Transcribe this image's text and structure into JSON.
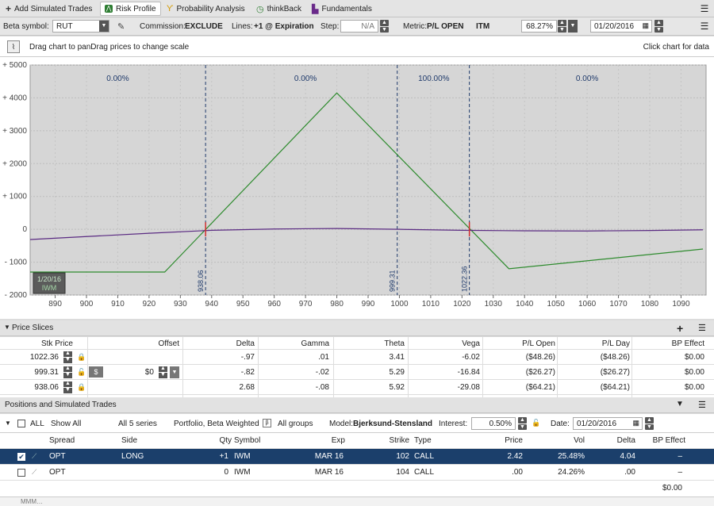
{
  "tabs": [
    {
      "label": "Add Simulated Trades",
      "icon": "plus-icon",
      "active": false
    },
    {
      "label": "Risk Profile",
      "icon": "risk-profile-icon",
      "active": true
    },
    {
      "label": "Probability Analysis",
      "icon": "probability-icon",
      "active": false
    },
    {
      "label": "thinkBack",
      "icon": "thinkback-icon",
      "active": false
    },
    {
      "label": "Fundamentals",
      "icon": "fundamentals-icon",
      "active": false
    }
  ],
  "toolbar": {
    "beta_label": "Beta symbol:",
    "beta_value": "RUT",
    "commission_label": "Commission:",
    "commission_value": "EXCLUDE",
    "lines_label": "Lines:",
    "lines_value": "+1 @ Expiration",
    "step_label": "Step:",
    "step_value": "N/A",
    "metric_label": "Metric:",
    "metric_value": "P/L OPEN",
    "itm_label": "ITM",
    "itm_value": "68.27%",
    "date_value": "01/20/2016"
  },
  "chart_header": {
    "left_text": "Drag chart to panDrag prices to change scale",
    "right_text": "Click chart for data"
  },
  "chart_data": {
    "type": "line",
    "x_ticks": [
      890,
      900,
      910,
      920,
      930,
      940,
      950,
      960,
      970,
      980,
      990,
      1000,
      1010,
      1020,
      1030,
      1040,
      1050,
      1060,
      1070,
      1080,
      1090
    ],
    "y_ticks": [
      "+ 5000",
      "+ 4000",
      "+ 3000",
      "+ 2000",
      "+ 1000",
      "0",
      "- 1000",
      "- 2000"
    ],
    "xlim": [
      882,
      1098
    ],
    "ylim": [
      -2000,
      5000
    ],
    "series": [
      {
        "color": "#2e8b2e",
        "x": [
          882,
          925,
          980,
          1035,
          1097
        ],
        "y": [
          -1300,
          -1300,
          4150,
          -1200,
          -600
        ]
      },
      {
        "color": "#5a2a82",
        "x": [
          882,
          900,
          920,
          940,
          960,
          980,
          1000,
          1020,
          1040,
          1060,
          1080,
          1097
        ],
        "y": [
          -310,
          -220,
          -120,
          -30,
          10,
          25,
          0,
          -30,
          -45,
          -50,
          -35,
          -15
        ]
      }
    ],
    "vertical_markers": [
      {
        "x": 938.06,
        "label": "938.06"
      },
      {
        "x": 999.31,
        "label": "999.31"
      },
      {
        "x": 1022.36,
        "label": "1022.36"
      }
    ],
    "probabilities": [
      {
        "x": 910,
        "label": "0.00%"
      },
      {
        "x": 970,
        "label": "0.00%"
      },
      {
        "x": 1011,
        "label": "100.00%"
      },
      {
        "x": 1060,
        "label": "0.00%"
      }
    ],
    "date_badge": [
      "1/20/16",
      "IWM"
    ]
  },
  "price_slices": {
    "title": "Price Slices",
    "columns": [
      "Stk Price",
      "Offset",
      "Delta",
      "Gamma",
      "Theta",
      "Vega",
      "P/L Open",
      "P/L Day",
      "BP Effect"
    ],
    "rows": [
      {
        "stk": "1022.36",
        "offset": "",
        "delta": "-.97",
        "gamma": ".01",
        "theta": "3.41",
        "vega": "-6.02",
        "pl_open": "($48.26)",
        "pl_day": "($48.26)",
        "bp": "$0.00"
      },
      {
        "stk": "999.31",
        "offset": "$0",
        "delta": "-.82",
        "gamma": "-.02",
        "theta": "5.29",
        "vega": "-16.84",
        "pl_open": "($26.27)",
        "pl_day": "($26.27)",
        "bp": "$0.00"
      },
      {
        "stk": "938.06",
        "offset": "",
        "delta": "2.68",
        "gamma": "-.08",
        "theta": "5.92",
        "vega": "-29.08",
        "pl_open": "($64.21)",
        "pl_day": "($64.21)",
        "bp": "$0.00"
      }
    ]
  },
  "positions": {
    "title": "Positions and Simulated Trades",
    "filters": {
      "all": "ALL",
      "show": "Show All",
      "series": "All 5 series",
      "portfolio": "Portfolio, Beta Weighted",
      "groups": "All groups",
      "model_label": "Model:",
      "model": "Bjerksund-Stensland",
      "interest_label": "Interest:",
      "interest": "0.50%",
      "date_label": "Date:",
      "date": "01/20/2016"
    },
    "columns": [
      "Spread",
      "Side",
      "Qty",
      "Symbol",
      "Exp",
      "Strike",
      "Type",
      "Price",
      "Vol",
      "Delta",
      "BP Effect"
    ],
    "rows": [
      {
        "spread": "OPT",
        "side": "LONG",
        "qty": "+1",
        "symbol": "IWM",
        "exp": "MAR 16",
        "strike": "102",
        "type": "CALL",
        "price": "2.42",
        "vol": "25.48%",
        "delta": "4.04",
        "bp": "–"
      },
      {
        "spread": "OPT",
        "side": "",
        "qty": "0",
        "symbol": "IWM",
        "exp": "MAR 16",
        "strike": "104",
        "type": "CALL",
        "price": ".00",
        "vol": "24.26%",
        "delta": ".00",
        "bp": "–"
      }
    ],
    "total_bp": "$0.00"
  },
  "next_group": "MMM…"
}
